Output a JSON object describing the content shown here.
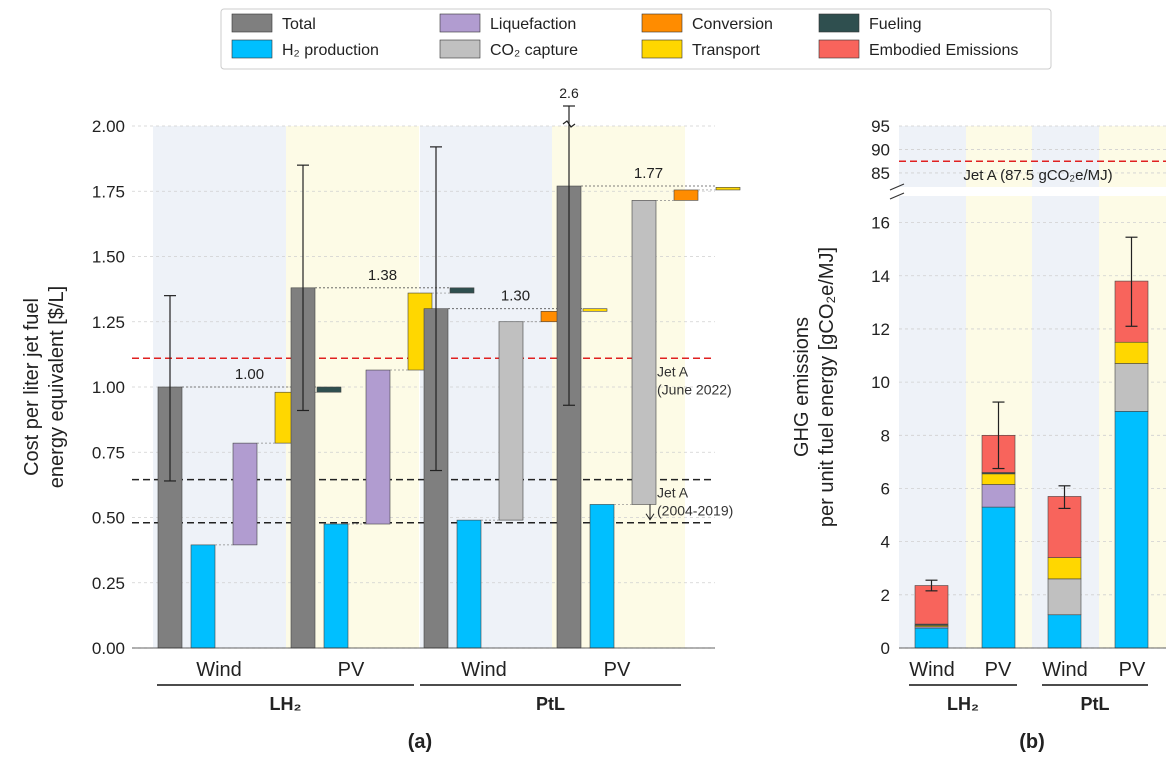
{
  "legend": {
    "items": [
      {
        "key": "total",
        "label": "Total",
        "color": "#7f7f7f"
      },
      {
        "key": "h2",
        "label": "H₂ production",
        "color": "#00bfff"
      },
      {
        "key": "liq",
        "label": "Liquefaction",
        "color": "#b19cd0"
      },
      {
        "key": "co2",
        "label": "CO₂ capture",
        "color": "#c0c0c0"
      },
      {
        "key": "conv",
        "label": "Conversion",
        "color": "#ff8c00"
      },
      {
        "key": "trans",
        "label": "Transport",
        "color": "#ffd700"
      },
      {
        "key": "fuel",
        "label": "Fueling",
        "color": "#2f4f4f"
      },
      {
        "key": "emb",
        "label": "Embodied Emissions",
        "color": "#f8645c"
      }
    ]
  },
  "chart_data": [
    {
      "id": "a",
      "type": "bar",
      "subtype": "waterfall",
      "panel_label": "(a)",
      "ylabel_lines": [
        "Cost per liter jet fuel",
        "energy equivalent [$/L]"
      ],
      "ylim": [
        0,
        2.0
      ],
      "yticks": [
        "0.00",
        "0.25",
        "0.50",
        "0.75",
        "1.00",
        "1.25",
        "1.50",
        "1.75",
        "2.00"
      ],
      "grid": true,
      "categories": [
        "Wind",
        "PV",
        "Wind",
        "PV"
      ],
      "groups": [
        {
          "label": "LH₂",
          "span": [
            0,
            1
          ]
        },
        {
          "label": "PtL",
          "span": [
            2,
            3
          ]
        }
      ],
      "backgrounds": [
        "#eef2f8",
        "#fdfbe6",
        "#eef2f8",
        "#fdfbe6"
      ],
      "pathways": [
        {
          "name": "LH₂ Wind",
          "total": 1.0,
          "total_label": "1.00",
          "err": [
            0.64,
            1.35
          ],
          "steps": [
            {
              "key": "h2",
              "value": 0.395
            },
            {
              "key": "liq",
              "value": 0.39
            },
            {
              "key": "trans",
              "value": 0.195
            },
            {
              "key": "fuel",
              "value": 0.02
            }
          ]
        },
        {
          "name": "LH₂ PV",
          "total": 1.38,
          "total_label": "1.38",
          "err": [
            0.91,
            1.85
          ],
          "steps": [
            {
              "key": "h2",
              "value": 0.475
            },
            {
              "key": "liq",
              "value": 0.59
            },
            {
              "key": "trans",
              "value": 0.295
            },
            {
              "key": "fuel",
              "value": 0.02
            }
          ]
        },
        {
          "name": "PtL Wind",
          "total": 1.3,
          "total_label": "1.30",
          "err": [
            0.68,
            1.92
          ],
          "steps": [
            {
              "key": "h2",
              "value": 0.49
            },
            {
              "key": "co2",
              "value": 0.76
            },
            {
              "key": "conv",
              "value": 0.04
            },
            {
              "key": "trans",
              "value": 0.01
            }
          ]
        },
        {
          "name": "PtL PV",
          "total": 1.77,
          "total_label": "1.77",
          "err": [
            0.93,
            2.6
          ],
          "err_top_label": "2.6",
          "steps": [
            {
              "key": "h2",
              "value": 0.55
            },
            {
              "key": "co2",
              "value": 1.165
            },
            {
              "key": "conv",
              "value": 0.04
            },
            {
              "key": "trans",
              "value": 0.01
            }
          ]
        }
      ],
      "reference_lines": [
        {
          "value": 1.11,
          "color": "#e02020",
          "label_lines": [
            "Jet A",
            "(June 2022)"
          ]
        },
        {
          "value": 0.645,
          "color": "#222222",
          "label_lines": [
            "Jet A",
            "(2004-2019)"
          ]
        },
        {
          "value": 0.48,
          "color": "#222222"
        }
      ]
    },
    {
      "id": "b",
      "type": "bar",
      "subtype": "stacked",
      "panel_label": "(b)",
      "ylabel_lines": [
        "GHG emissions",
        "per unit fuel energy [gCO₂e/MJ]"
      ],
      "ylim_lower": [
        0,
        17
      ],
      "ylim_upper": [
        82,
        95
      ],
      "yticks_lower": [
        "0",
        "2",
        "4",
        "6",
        "8",
        "10",
        "12",
        "14",
        "16"
      ],
      "yticks_upper": [
        "85",
        "90",
        "95"
      ],
      "broken_axis": true,
      "grid": true,
      "categories": [
        "Wind",
        "PV",
        "Wind",
        "PV"
      ],
      "groups": [
        {
          "label": "LH₂",
          "span": [
            0,
            1
          ]
        },
        {
          "label": "PtL",
          "span": [
            2,
            3
          ]
        }
      ],
      "backgrounds": [
        "#eef2f8",
        "#fdfbe6",
        "#eef2f8",
        "#fdfbe6"
      ],
      "series": [
        {
          "key": "h2",
          "name": "H₂ production",
          "values": [
            0.75,
            5.3,
            1.25,
            8.9
          ]
        },
        {
          "key": "liq",
          "name": "Liquefaction",
          "values": [
            0.05,
            0.85,
            0,
            0
          ]
        },
        {
          "key": "co2",
          "name": "CO₂ capture",
          "values": [
            0,
            0,
            1.35,
            1.8
          ]
        },
        {
          "key": "conv",
          "name": "Conversion",
          "values": [
            0,
            0,
            0,
            0
          ]
        },
        {
          "key": "trans",
          "name": "Transport",
          "values": [
            0.05,
            0.4,
            0.8,
            0.8
          ]
        },
        {
          "key": "fuel",
          "name": "Fueling",
          "values": [
            0.05,
            0.05,
            0,
            0
          ]
        },
        {
          "key": "emb",
          "name": "Embodied Emissions",
          "values": [
            1.45,
            1.4,
            2.3,
            2.3
          ]
        }
      ],
      "err": [
        [
          2.15,
          2.55
        ],
        [
          6.75,
          9.25
        ],
        [
          5.25,
          6.1
        ],
        [
          12.1,
          15.45
        ]
      ],
      "reference_line": {
        "value": 87.5,
        "color": "#e02020",
        "label": "Jet A (87.5 gCO₂e/MJ)"
      }
    }
  ]
}
